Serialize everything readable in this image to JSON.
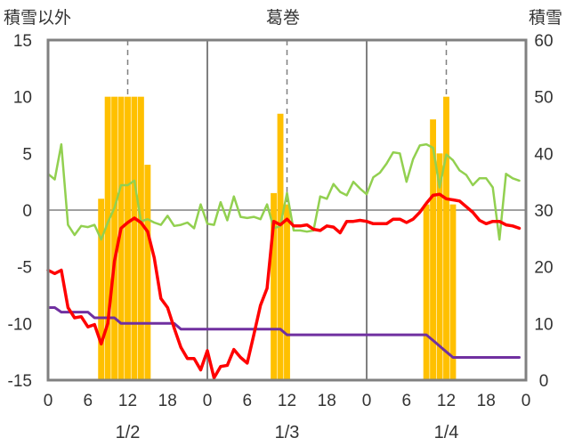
{
  "chart_data": {
    "type": "line+bar",
    "title": "葛巻",
    "ylabel_left": "積雪以外",
    "ylabel_right": "積雪",
    "ylim_left": [
      -15,
      15
    ],
    "ylim_right": [
      0,
      60
    ],
    "yticks_left": [
      "15",
      "10",
      "5",
      "0",
      "-5",
      "-10",
      "-15"
    ],
    "yticks_right": [
      "60",
      "50",
      "40",
      "30",
      "20",
      "10",
      "0"
    ],
    "xlim_hours": [
      0,
      72
    ],
    "xticks": [
      "0",
      "6",
      "12",
      "18",
      "0",
      "6",
      "12",
      "18",
      "0",
      "6",
      "12",
      "18",
      "0"
    ],
    "date_labels": [
      {
        "hour": 12,
        "label": "1/2"
      },
      {
        "hour": 36,
        "label": "1/3"
      },
      {
        "hour": 60,
        "label": "1/4"
      }
    ],
    "colors": {
      "snow_depth": "#ffc000",
      "red": "#ff0000",
      "green": "#92d050",
      "purple": "#7030a0",
      "frame": "#808080",
      "grid": "#808080"
    },
    "snow_depth": {
      "axis": "right",
      "hours": [
        8,
        9,
        10,
        11,
        12,
        13,
        14,
        15,
        34,
        35,
        36,
        57,
        58,
        59,
        60,
        61
      ],
      "values": [
        32,
        50,
        50,
        50,
        50,
        50,
        50,
        38,
        33,
        47,
        31,
        31,
        46,
        40,
        50,
        31
      ]
    },
    "red_series": {
      "axis": "left",
      "hours": [
        0,
        1,
        2,
        3,
        4,
        5,
        6,
        7,
        8,
        9,
        10,
        11,
        12,
        13,
        14,
        15,
        16,
        17,
        18,
        19,
        20,
        21,
        22,
        23,
        24,
        25,
        26,
        27,
        28,
        29,
        30,
        31,
        32,
        33,
        34,
        35,
        36,
        37,
        38,
        39,
        40,
        41,
        42,
        43,
        44,
        45,
        46,
        47,
        48,
        49,
        50,
        51,
        52,
        53,
        54,
        55,
        56,
        57,
        58,
        59,
        60,
        61,
        62,
        63,
        64,
        65,
        66,
        67,
        68,
        69,
        70,
        71
      ],
      "values": [
        -5.3,
        -5.6,
        -5.3,
        -8.6,
        -9.5,
        -9.4,
        -10.3,
        -10.1,
        -11.8,
        -10.0,
        -4.5,
        -1.6,
        -1.1,
        -0.7,
        -1.1,
        -1.9,
        -4.2,
        -7.8,
        -8.6,
        -10.4,
        -12.1,
        -13.1,
        -13.1,
        -14.1,
        -12.4,
        -14.8,
        -13.8,
        -13.7,
        -12.3,
        -13.0,
        -13.5,
        -11.0,
        -8.4,
        -6.9,
        -1.0,
        -1.3,
        -0.8,
        -1.4,
        -1.4,
        -1.3,
        -1.7,
        -1.8,
        -1.4,
        -1.5,
        -2.0,
        -1.0,
        -1.0,
        -0.9,
        -1.0,
        -1.2,
        -1.2,
        -1.2,
        -0.8,
        -0.8,
        -1.1,
        -0.8,
        -0.2,
        0.6,
        1.3,
        1.4,
        1.0,
        0.9,
        0.8,
        0.3,
        -0.2,
        -0.9,
        -1.2,
        -1.0,
        -1.0,
        -1.3,
        -1.4,
        -1.6
      ]
    },
    "green_series": {
      "axis": "left",
      "hours": [
        0,
        1,
        2,
        3,
        4,
        5,
        6,
        7,
        8,
        9,
        10,
        11,
        12,
        13,
        14,
        15,
        16,
        17,
        18,
        19,
        20,
        21,
        22,
        23,
        24,
        25,
        26,
        27,
        28,
        29,
        30,
        31,
        32,
        33,
        34,
        35,
        36,
        37,
        38,
        39,
        40,
        41,
        42,
        43,
        44,
        45,
        46,
        47,
        48,
        49,
        50,
        51,
        52,
        53,
        54,
        55,
        56,
        57,
        58,
        59,
        60,
        61,
        62,
        63,
        64,
        65,
        66,
        67,
        68,
        69,
        70,
        71
      ],
      "values": [
        3.2,
        2.7,
        5.8,
        -1.3,
        -2.2,
        -1.4,
        -1.5,
        -1.3,
        -2.6,
        -1.1,
        0.2,
        2.2,
        2.2,
        2.6,
        -1.0,
        -0.8,
        -1.1,
        -1.3,
        -0.5,
        -1.4,
        -1.3,
        -1.1,
        -1.6,
        0.5,
        -1.2,
        -1.3,
        0.7,
        -0.9,
        1.2,
        -0.6,
        -0.7,
        -0.6,
        -0.8,
        0.5,
        -1.6,
        -1.4,
        1.5,
        -1.8,
        -1.8,
        -1.9,
        -1.8,
        1.2,
        1.0,
        2.3,
        1.6,
        1.3,
        2.5,
        1.9,
        1.4,
        2.9,
        3.3,
        4.1,
        5.1,
        5.0,
        2.5,
        4.5,
        5.7,
        5.8,
        5.5,
        2.0,
        4.9,
        4.4,
        3.5,
        3.1,
        2.2,
        2.8,
        2.8,
        2.0,
        -2.6,
        3.2,
        2.8,
        2.6
      ]
    },
    "purple_series": {
      "axis": "left",
      "hours": [
        0,
        1,
        2,
        3,
        4,
        5,
        6,
        7,
        8,
        9,
        10,
        11,
        12,
        13,
        14,
        15,
        16,
        17,
        18,
        19,
        20,
        21,
        22,
        23,
        24,
        25,
        26,
        27,
        28,
        29,
        30,
        31,
        32,
        33,
        34,
        35,
        36,
        37,
        38,
        39,
        40,
        41,
        42,
        43,
        44,
        45,
        46,
        47,
        48,
        49,
        50,
        51,
        52,
        53,
        54,
        55,
        56,
        57,
        58,
        59,
        60,
        61,
        62,
        63,
        64,
        65,
        66,
        67,
        68,
        69,
        70,
        71
      ],
      "values": [
        -8.6,
        -8.6,
        -9.0,
        -9.0,
        -9.0,
        -9.0,
        -9.0,
        -9.5,
        -9.5,
        -9.5,
        -9.5,
        -10.0,
        -10.0,
        -10.0,
        -10.0,
        -10.0,
        -10.0,
        -10.0,
        -10.0,
        -10.0,
        -10.5,
        -10.5,
        -10.5,
        -10.5,
        -10.5,
        -10.5,
        -10.5,
        -10.5,
        -10.5,
        -10.5,
        -10.5,
        -10.5,
        -10.5,
        -10.5,
        -10.5,
        -10.5,
        -11.0,
        -11.0,
        -11.0,
        -11.0,
        -11.0,
        -11.0,
        -11.0,
        -11.0,
        -11.0,
        -11.0,
        -11.0,
        -11.0,
        -11.0,
        -11.0,
        -11.0,
        -11.0,
        -11.0,
        -11.0,
        -11.0,
        -11.0,
        -11.0,
        -11.0,
        -11.5,
        -12.0,
        -12.5,
        -13.0,
        -13.0,
        -13.0,
        -13.0,
        -13.0,
        -13.0,
        -13.0,
        -13.0,
        -13.0,
        -13.0,
        -13.0
      ]
    }
  }
}
